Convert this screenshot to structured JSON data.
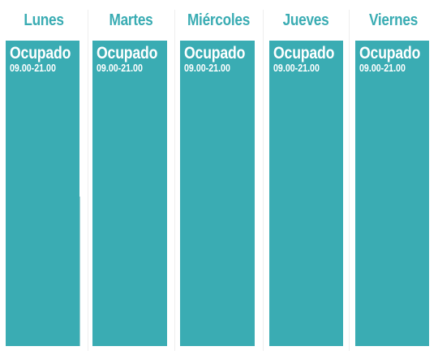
{
  "colors": {
    "accent": "#3aacb3",
    "header_text": "#3aacb3",
    "slot_text": "#ffffff",
    "background": "#ffffff"
  },
  "days": [
    {
      "label": "Lunes",
      "status": "Ocupado",
      "hours": "09.00-21.00"
    },
    {
      "label": "Martes",
      "status": "Ocupado",
      "hours": "09.00-21.00"
    },
    {
      "label": "Miércoles",
      "status": "Ocupado",
      "hours": "09.00-21.00"
    },
    {
      "label": "Jueves",
      "status": "Ocupado",
      "hours": "09.00-21.00"
    },
    {
      "label": "Viernes",
      "status": "Ocupado",
      "hours": "09.00-21.00"
    }
  ]
}
